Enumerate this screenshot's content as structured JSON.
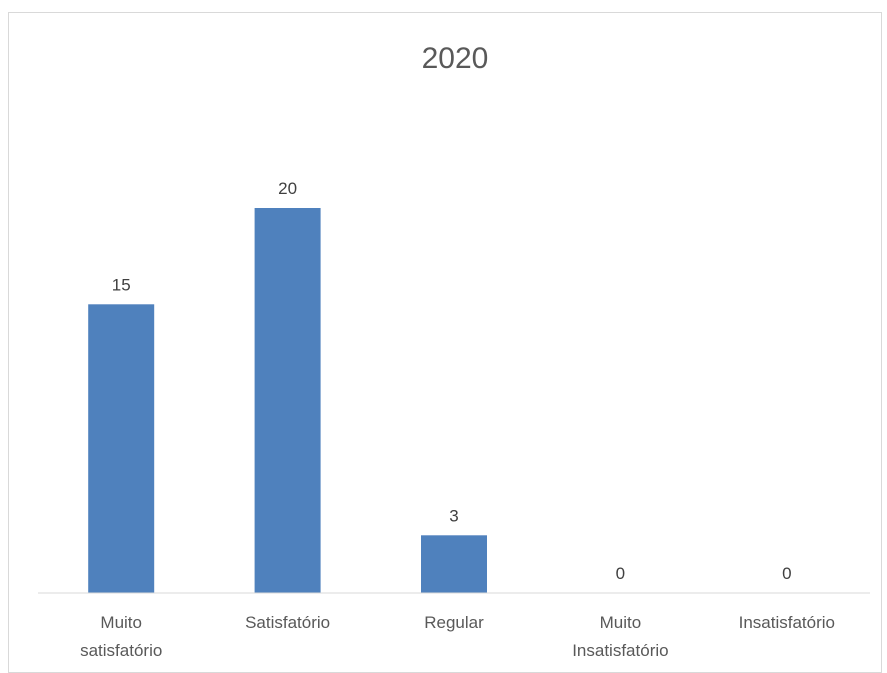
{
  "chart_data": {
    "type": "bar",
    "title": "2020",
    "categories": [
      [
        "Muito",
        "satisfatório"
      ],
      [
        "Satisfatório"
      ],
      [
        "Regular"
      ],
      [
        "Muito",
        "Insatisfatório"
      ],
      [
        "Insatisfatório"
      ]
    ],
    "values": [
      15,
      20,
      3,
      0,
      0
    ],
    "data_labels": [
      "15",
      "20",
      "3",
      "0",
      "0"
    ],
    "xlabel": "",
    "ylabel": "",
    "ylim": [
      0,
      20
    ],
    "grid": false,
    "legend": "none",
    "bar_color": "#4f81bd",
    "axis_color": "#d9d9d9"
  }
}
